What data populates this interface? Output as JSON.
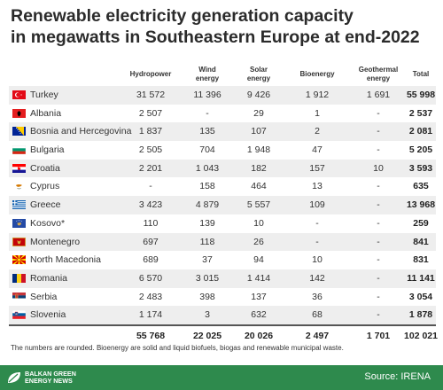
{
  "title_line1": "Renewable electricity generation capacity",
  "title_line2": "in megawatts in Southeastern Europe at end-2022",
  "headers": {
    "hydro": "Hydropower",
    "wind_1": "Wind",
    "wind_2": "energy",
    "solar_1": "Solar",
    "solar_2": "energy",
    "bio": "Bioenergy",
    "geo_1": "Geothermal",
    "geo_2": "energy",
    "total": "Total"
  },
  "rows": [
    {
      "country": "Turkey",
      "flag": "turkey-flag-icon",
      "hydro": "31 572",
      "wind": "11 396",
      "solar": "9 426",
      "bio": "1 912",
      "geo": "1 691",
      "total": "55 998"
    },
    {
      "country": "Albania",
      "flag": "albania-flag-icon",
      "hydro": "2 507",
      "wind": "-",
      "solar": "29",
      "bio": "1",
      "geo": "-",
      "total": "2 537"
    },
    {
      "country": "Bosnia and Hercegovina",
      "flag": "bosnia-flag-icon",
      "hydro": "1 837",
      "wind": "135",
      "solar": "107",
      "bio": "2",
      "geo": "-",
      "total": "2 081"
    },
    {
      "country": "Bulgaria",
      "flag": "bulgaria-flag-icon",
      "hydro": "2 505",
      "wind": "704",
      "solar": "1 948",
      "bio": "47",
      "geo": "-",
      "total": "5 205"
    },
    {
      "country": "Croatia",
      "flag": "croatia-flag-icon",
      "hydro": "2 201",
      "wind": "1 043",
      "solar": "182",
      "bio": "157",
      "geo": "10",
      "total": "3 593"
    },
    {
      "country": "Cyprus",
      "flag": "cyprus-flag-icon",
      "hydro": "-",
      "wind": "158",
      "solar": "464",
      "bio": "13",
      "geo": "-",
      "total": "635"
    },
    {
      "country": "Greece",
      "flag": "greece-flag-icon",
      "hydro": "3 423",
      "wind": "4 879",
      "solar": "5 557",
      "bio": "109",
      "geo": "-",
      "total": "13 968"
    },
    {
      "country": "Kosovo*",
      "flag": "kosovo-flag-icon",
      "hydro": "110",
      "wind": "139",
      "solar": "10",
      "bio": "-",
      "geo": "-",
      "total": "259"
    },
    {
      "country": "Montenegro",
      "flag": "montenegro-flag-icon",
      "hydro": "697",
      "wind": "118",
      "solar": "26",
      "bio": "-",
      "geo": "-",
      "total": "841"
    },
    {
      "country": "North Macedonia",
      "flag": "north-macedonia-flag-icon",
      "hydro": "689",
      "wind": "37",
      "solar": "94",
      "bio": "10",
      "geo": "-",
      "total": "831"
    },
    {
      "country": "Romania",
      "flag": "romania-flag-icon",
      "hydro": "6 570",
      "wind": "3 015",
      "solar": "1 414",
      "bio": "142",
      "geo": "-",
      "total": "11 141"
    },
    {
      "country": "Serbia",
      "flag": "serbia-flag-icon",
      "hydro": "2 483",
      "wind": "398",
      "solar": "137",
      "bio": "36",
      "geo": "-",
      "total": "3 054"
    },
    {
      "country": "Slovenia",
      "flag": "slovenia-flag-icon",
      "hydro": "1 174",
      "wind": "3",
      "solar": "632",
      "bio": "68",
      "geo": "-",
      "total": "1 878"
    }
  ],
  "totals": {
    "hydro": "55 768",
    "wind": "22 025",
    "solar": "20 026",
    "bio": "2 497",
    "geo": "1 701",
    "total": "102 021"
  },
  "footnote": "The numbers are rounded. Bioenergy are solid and liquid biofuels, biogas and renewable municipal waste.",
  "logo_line1": "BALKAN GREEN",
  "logo_line2": "ENERGY NEWS",
  "source": "Source: IRENA",
  "colors": {
    "accent_green": "#2e8a4d",
    "row_alt": "#eeeeee"
  }
}
